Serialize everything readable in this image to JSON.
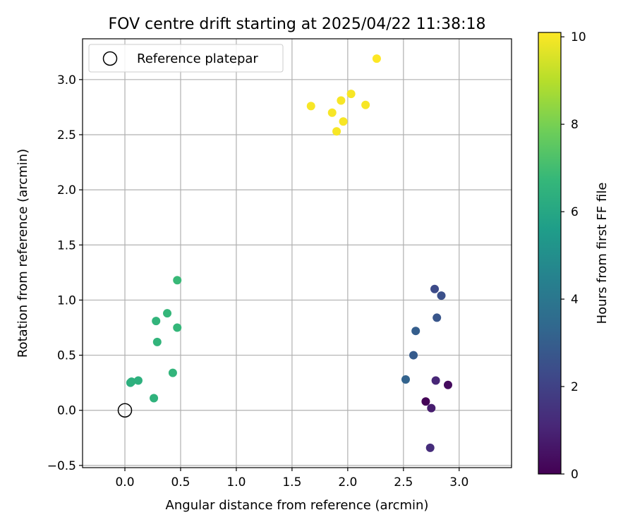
{
  "chart_data": {
    "type": "scatter",
    "title": "FOV centre drift starting at 2025/04/22 11:38:18",
    "xlabel": "Angular distance from reference (arcmin)",
    "ylabel": "Rotation from reference (arcmin)",
    "xlim": [
      -0.38,
      3.47
    ],
    "ylim": [
      -0.52,
      3.37
    ],
    "xticks": [
      0.0,
      0.5,
      1.0,
      1.5,
      2.0,
      2.5,
      3.0
    ],
    "xtick_labels": [
      "0.0",
      "0.5",
      "1.0",
      "1.5",
      "2.0",
      "2.5",
      "3.0"
    ],
    "yticks": [
      -0.5,
      0.0,
      0.5,
      1.0,
      1.5,
      2.0,
      2.5,
      3.0
    ],
    "ytick_labels": [
      "−0.5",
      "0.0",
      "0.5",
      "1.0",
      "1.5",
      "2.0",
      "2.5",
      "3.0"
    ],
    "grid": true,
    "legend": {
      "placement": "upper-left",
      "entries": [
        "Reference platepar"
      ]
    },
    "reference_point": {
      "label": "Reference platepar",
      "x": 0.0,
      "y": 0.0
    },
    "colorbar": {
      "label": "Hours from first FF file",
      "min": 0,
      "max": 10.1,
      "ticks": [
        0,
        2,
        4,
        6,
        8,
        10
      ],
      "tick_labels": [
        "0",
        "2",
        "4",
        "6",
        "8",
        "10"
      ],
      "colormap": "viridis"
    },
    "points": [
      {
        "x": 2.7,
        "y": 0.08,
        "t": 0.1
      },
      {
        "x": 2.9,
        "y": 0.23,
        "t": 0.3
      },
      {
        "x": 2.75,
        "y": 0.02,
        "t": 0.8
      },
      {
        "x": 2.79,
        "y": 0.27,
        "t": 1.1
      },
      {
        "x": 2.74,
        "y": -0.34,
        "t": 1.3
      },
      {
        "x": 2.78,
        "y": 1.1,
        "t": 2.3
      },
      {
        "x": 2.84,
        "y": 1.04,
        "t": 2.5
      },
      {
        "x": 2.8,
        "y": 0.84,
        "t": 2.7
      },
      {
        "x": 2.61,
        "y": 0.72,
        "t": 3.0
      },
      {
        "x": 2.59,
        "y": 0.5,
        "t": 2.9
      },
      {
        "x": 2.52,
        "y": 0.28,
        "t": 3.2
      },
      {
        "x": 0.47,
        "y": 1.18,
        "t": 6.8
      },
      {
        "x": 0.38,
        "y": 0.88,
        "t": 6.7
      },
      {
        "x": 0.28,
        "y": 0.81,
        "t": 6.6
      },
      {
        "x": 0.47,
        "y": 0.75,
        "t": 6.7
      },
      {
        "x": 0.29,
        "y": 0.62,
        "t": 6.6
      },
      {
        "x": 0.43,
        "y": 0.34,
        "t": 6.6
      },
      {
        "x": 0.05,
        "y": 0.25,
        "t": 6.3
      },
      {
        "x": 0.06,
        "y": 0.26,
        "t": 6.4
      },
      {
        "x": 0.12,
        "y": 0.27,
        "t": 6.4
      },
      {
        "x": 0.26,
        "y": 0.11,
        "t": 6.5
      },
      {
        "x": 2.26,
        "y": 3.19,
        "t": 10.1
      },
      {
        "x": 2.03,
        "y": 2.87,
        "t": 10.0
      },
      {
        "x": 1.94,
        "y": 2.81,
        "t": 10.0
      },
      {
        "x": 1.67,
        "y": 2.76,
        "t": 10.0
      },
      {
        "x": 2.16,
        "y": 2.77,
        "t": 10.0
      },
      {
        "x": 1.86,
        "y": 2.7,
        "t": 10.0
      },
      {
        "x": 1.96,
        "y": 2.62,
        "t": 10.0
      },
      {
        "x": 1.9,
        "y": 2.53,
        "t": 10.0
      }
    ]
  }
}
